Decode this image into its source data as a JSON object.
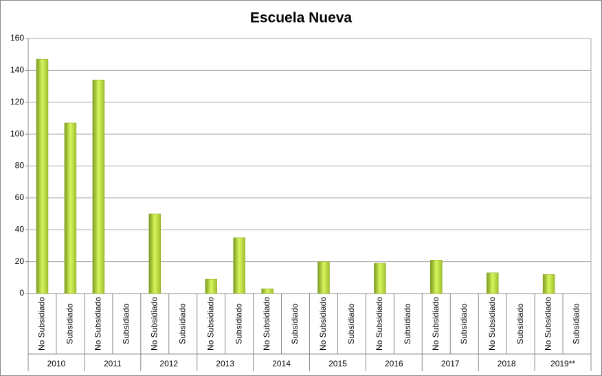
{
  "chart_data": {
    "type": "bar",
    "title": "Escuela Nueva",
    "categories": [
      "No Subsidiado",
      "Subsidiado",
      "No Subsidiado",
      "Subsidiado",
      "No Subsidiado",
      "Subsidiado",
      "No Subsidiado",
      "Subsidiado",
      "No Subsidiado",
      "Subsidiado",
      "No Subsidiado",
      "Subsidiado",
      "No Subsidiado",
      "Subsidiado",
      "No Subsidiado",
      "Subsidiado",
      "No Subsidiado",
      "Subsidiado",
      "No Subsidiado",
      "Subsidiado"
    ],
    "groups": [
      "2010",
      "2011",
      "2012",
      "2013",
      "2014",
      "2015",
      "2016",
      "2017",
      "2018",
      "2019**"
    ],
    "values": [
      147,
      107,
      134,
      0,
      50,
      0,
      9,
      35,
      3,
      0,
      20,
      0,
      19,
      0,
      21,
      0,
      13,
      0,
      12,
      0
    ],
    "color": "#d8f55c",
    "ylim": [
      0,
      160
    ],
    "yticks": [
      0,
      20,
      40,
      60,
      80,
      100,
      120,
      140,
      160
    ],
    "grid": true
  }
}
